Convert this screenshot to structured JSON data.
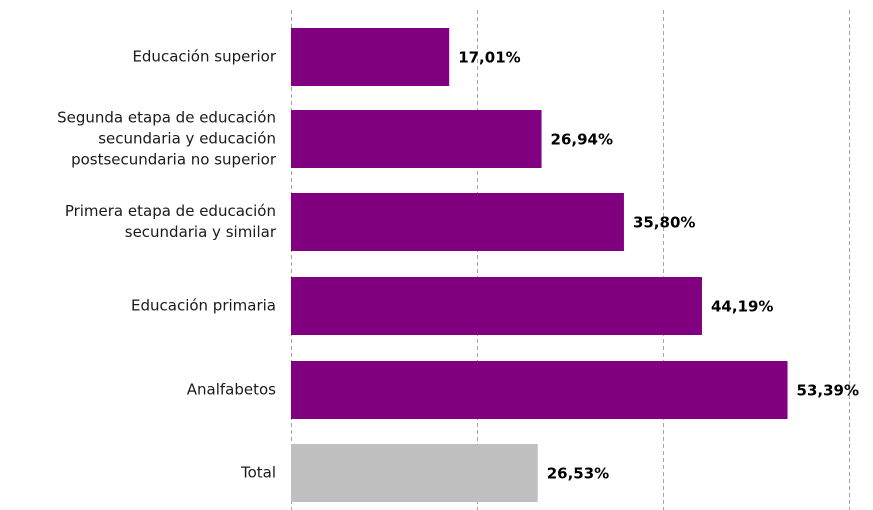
{
  "chart_data": {
    "type": "bar",
    "orientation": "horizontal",
    "categories": [
      [
        "Educación superior"
      ],
      [
        "Segunda etapa de educación",
        "secundaria y educación",
        "postsecundaria no superior"
      ],
      [
        "Primera etapa de educación",
        "secundaria y similar"
      ],
      [
        "Educación primaria"
      ],
      [
        "Analfabetos"
      ],
      [
        "Total"
      ]
    ],
    "values": [
      17.01,
      26.94,
      35.8,
      44.19,
      53.39,
      26.53
    ],
    "value_labels": [
      "17,01%",
      "26,94%",
      "35,80%",
      "44,19%",
      "53,39%",
      "26,53%"
    ],
    "bar_colors": [
      "#800080",
      "#800080",
      "#800080",
      "#800080",
      "#800080",
      "#bfbfbf"
    ],
    "xlim": [
      0,
      60
    ],
    "gridlines_x": [
      0,
      20,
      40,
      60
    ],
    "grid": true,
    "title": "",
    "xlabel": "",
    "ylabel": ""
  }
}
